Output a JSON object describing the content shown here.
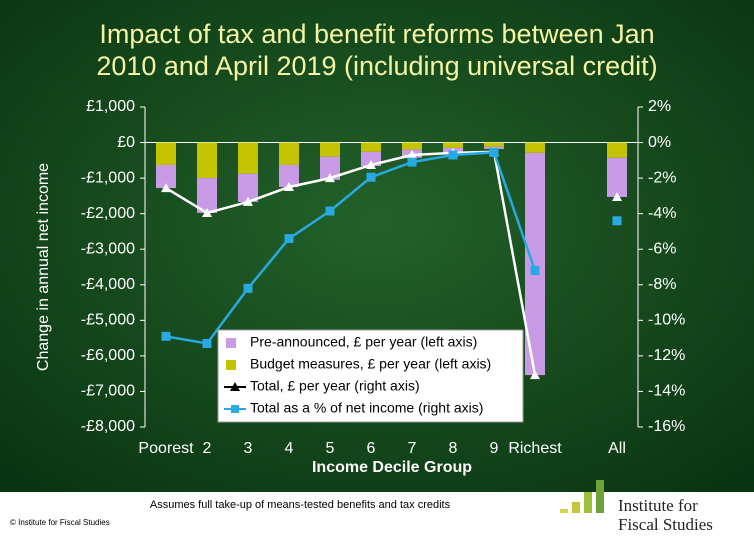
{
  "chart_data": {
    "type": "bar",
    "title": [
      "Impact of tax and benefit reforms between Jan",
      "2010 and April 2019 (including universal credit)"
    ],
    "x_label": "Income Decile Group",
    "y_label": "Change in annual net income",
    "categories": [
      "Poorest",
      "2",
      "3",
      "4",
      "5",
      "6",
      "7",
      "8",
      "9",
      "Richest",
      null,
      "All"
    ],
    "series": [
      {
        "name": "Pre-announced, £ per year (left axis)",
        "type": "bar",
        "color": "#c99be6",
        "values": [
          -650,
          -980,
          -790,
          -620,
          -650,
          -400,
          -230,
          -140,
          -60,
          -6250,
          null,
          -1100
        ]
      },
      {
        "name": "Budget measures, £ per year (left axis)",
        "type": "bar",
        "color": "#c3c300",
        "values": [
          -630,
          -1000,
          -880,
          -630,
          -400,
          -260,
          -200,
          -150,
          -120,
          -290,
          null,
          -430
        ]
      },
      {
        "name": "Total, £ per year (right axis)",
        "type": "line",
        "color": "#ffffff",
        "marker": "triangle",
        "values": [
          -1280,
          -1980,
          -1670,
          -1250,
          -1000,
          -630,
          -350,
          -290,
          -260,
          -6540,
          null,
          -1530
        ]
      },
      {
        "name": "Total as a % of net income (right axis)",
        "type": "line",
        "axis": "y2",
        "color": "#29a9e1",
        "marker": "square",
        "values": [
          -10.9,
          -11.3,
          -8.2,
          -5.4,
          -3.85,
          -1.95,
          -1.1,
          -0.7,
          -0.55,
          -7.2,
          null,
          -4.4
        ]
      }
    ],
    "ylim": [
      -8000,
      1000
    ],
    "yticks": [
      {
        "value": 1000,
        "label": "£1,000"
      },
      {
        "value": 0,
        "label": "£0"
      },
      {
        "value": -1000,
        "label": "-£1,000"
      },
      {
        "value": -2000,
        "label": "-£2,000"
      },
      {
        "value": -3000,
        "label": "-£3,000"
      },
      {
        "value": -4000,
        "label": "-£4,000"
      },
      {
        "value": -5000,
        "label": "-£5,000"
      },
      {
        "value": -6000,
        "label": "-£6,000"
      },
      {
        "value": -7000,
        "label": "-£7,000"
      },
      {
        "value": -8000,
        "label": "-£8,000"
      }
    ],
    "y2lim": [
      -16,
      2
    ],
    "y2ticks": [
      {
        "value": 2,
        "label": "2%"
      },
      {
        "value": 0,
        "label": "0%"
      },
      {
        "value": -2,
        "label": "-2%"
      },
      {
        "value": -4,
        "label": "-4%"
      },
      {
        "value": -6,
        "label": "-6%"
      },
      {
        "value": -8,
        "label": "-8%"
      },
      {
        "value": -10,
        "label": "-10%"
      },
      {
        "value": -12,
        "label": "-12%"
      },
      {
        "value": -14,
        "label": "-14%"
      },
      {
        "value": -16,
        "label": "-16%"
      }
    ],
    "note": "Assumes full take-up of means-tested benefits and tax credits",
    "copyright": "© Institute for Fiscal Studies",
    "logo": [
      "Institute for",
      "Fiscal Studies"
    ]
  }
}
